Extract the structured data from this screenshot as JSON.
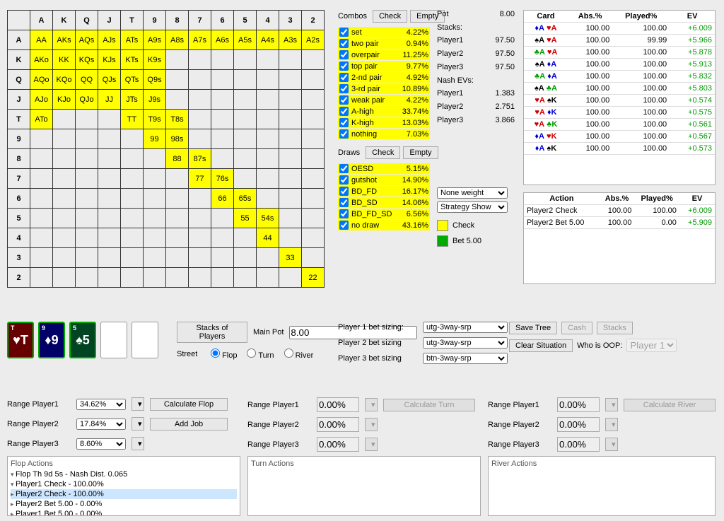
{
  "ranks": [
    "A",
    "K",
    "Q",
    "J",
    "T",
    "9",
    "8",
    "7",
    "6",
    "5",
    "4",
    "3",
    "2"
  ],
  "highlighted_cells": [
    "AA",
    "AKs",
    "AQs",
    "AJs",
    "ATs",
    "A9s",
    "A8s",
    "A7s",
    "A6s",
    "A5s",
    "A4s",
    "A3s",
    "A2s",
    "AKo",
    "KK",
    "KQs",
    "KJs",
    "KTs",
    "K9s",
    "AQo",
    "KQo",
    "QQ",
    "QJs",
    "QTs",
    "Q9s",
    "AJo",
    "KJo",
    "QJo",
    "JJ",
    "JTs",
    "J9s",
    "ATo",
    "TT",
    "T9s",
    "T8s",
    "99",
    "98s",
    "88",
    "87s",
    "77",
    "76s",
    "66",
    "65s",
    "55",
    "54s",
    "44",
    "33",
    "22"
  ],
  "combos_title": "Combos",
  "check_label": "Check",
  "empty_label": "Empty",
  "combos": [
    {
      "label": "set",
      "pct": "4.22%"
    },
    {
      "label": "two pair",
      "pct": "0.94%"
    },
    {
      "label": "overpair",
      "pct": "11.25%"
    },
    {
      "label": "top pair",
      "pct": "9.77%"
    },
    {
      "label": "2-nd pair",
      "pct": "4.92%"
    },
    {
      "label": "3-rd pair",
      "pct": "10.89%"
    },
    {
      "label": "weak pair",
      "pct": "4.22%"
    },
    {
      "label": "A-high",
      "pct": "33.74%"
    },
    {
      "label": "K-high",
      "pct": "13.03%"
    },
    {
      "label": "nothing",
      "pct": "7.03%"
    }
  ],
  "draws_title": "Draws",
  "draws": [
    {
      "label": "OESD",
      "pct": "5.15%"
    },
    {
      "label": "gutshot",
      "pct": "14.90%"
    },
    {
      "label": "BD_FD",
      "pct": "16.17%"
    },
    {
      "label": "BD_SD",
      "pct": "14.06%"
    },
    {
      "label": "BD_FD_SD",
      "pct": "6.56%"
    },
    {
      "label": "no draw",
      "pct": "43.16%"
    }
  ],
  "pot": {
    "pot_label": "Pot",
    "pot_val": "8.00",
    "stacks_label": "Stacks:",
    "p1_label": "Player1",
    "p1_val": "97.50",
    "p2_label": "Player2",
    "p2_val": "97.50",
    "p3_label": "Player3",
    "p3_val": "97.50",
    "nash_label": "Nash EVs:",
    "n1_label": "Player1",
    "n1_val": "1.383",
    "n2_label": "Player2",
    "n2_val": "2.751",
    "n3_label": "Player3",
    "n3_val": "3.866"
  },
  "card_table": {
    "headers": [
      "Card",
      "Abs.%",
      "Played%",
      "EV"
    ],
    "rows": [
      {
        "c": [
          [
            "d",
            "A"
          ],
          [
            "h",
            "A"
          ]
        ],
        "abs": "100.00",
        "pl": "100.00",
        "ev": "+6.009"
      },
      {
        "c": [
          [
            "s",
            "A"
          ],
          [
            "h",
            "A"
          ]
        ],
        "abs": "100.00",
        "pl": "99.99",
        "ev": "+5.966"
      },
      {
        "c": [
          [
            "c",
            "A"
          ],
          [
            "h",
            "A"
          ]
        ],
        "abs": "100.00",
        "pl": "100.00",
        "ev": "+5.878"
      },
      {
        "c": [
          [
            "s",
            "A"
          ],
          [
            "d",
            "A"
          ]
        ],
        "abs": "100.00",
        "pl": "100.00",
        "ev": "+5.913"
      },
      {
        "c": [
          [
            "c",
            "A"
          ],
          [
            "d",
            "A"
          ]
        ],
        "abs": "100.00",
        "pl": "100.00",
        "ev": "+5.832"
      },
      {
        "c": [
          [
            "s",
            "A"
          ],
          [
            "c",
            "A"
          ]
        ],
        "abs": "100.00",
        "pl": "100.00",
        "ev": "+5.803"
      },
      {
        "c": [
          [
            "h",
            "A"
          ],
          [
            "s",
            "K"
          ]
        ],
        "abs": "100.00",
        "pl": "100.00",
        "ev": "+0.574"
      },
      {
        "c": [
          [
            "h",
            "A"
          ],
          [
            "d",
            "K"
          ]
        ],
        "abs": "100.00",
        "pl": "100.00",
        "ev": "+0.575"
      },
      {
        "c": [
          [
            "h",
            "A"
          ],
          [
            "c",
            "K"
          ]
        ],
        "abs": "100.00",
        "pl": "100.00",
        "ev": "+0.561"
      },
      {
        "c": [
          [
            "d",
            "A"
          ],
          [
            "h",
            "K"
          ]
        ],
        "abs": "100.00",
        "pl": "100.00",
        "ev": "+0.567"
      },
      {
        "c": [
          [
            "d",
            "A"
          ],
          [
            "s",
            "K"
          ]
        ],
        "abs": "100.00",
        "pl": "100.00",
        "ev": "+0.573"
      }
    ]
  },
  "strategy": {
    "weight_options": [
      "None weight"
    ],
    "show_options": [
      "Strategy Show"
    ],
    "legend": [
      {
        "color": "#ffff00",
        "label": "Check"
      },
      {
        "color": "#00aa00",
        "label": "Bet 5.00"
      }
    ]
  },
  "action_table": {
    "headers": [
      "Action",
      "Abs.%",
      "Played%",
      "EV"
    ],
    "rows": [
      {
        "action": "Player2 Check",
        "abs": "100.00",
        "pl": "100.00",
        "ev": "+6.009"
      },
      {
        "action": "Player2 Bet 5.00",
        "abs": "100.00",
        "pl": "0.00",
        "ev": "+5.909"
      }
    ]
  },
  "board_cards": [
    {
      "rank": "T",
      "suit": "h",
      "bg": "red"
    },
    {
      "rank": "9",
      "suit": "d",
      "bg": "blue"
    },
    {
      "rank": "5",
      "suit": "s",
      "bg": "black"
    }
  ],
  "mid": {
    "stacks_btn": "Stacks of Players",
    "main_pot_label": "Main Pot",
    "main_pot_val": "8.00",
    "street_label": "Street",
    "flop": "Flop",
    "turn": "Turn",
    "river": "River"
  },
  "sizing": {
    "p1_label": "Player 1 bet sizing:",
    "p1_val": "utg-3way-srp",
    "p2_label": "Player 2 bet sizing",
    "p2_val": "utg-3way-srp",
    "p3_label": "Player 3 bet sizing",
    "p3_val": "btn-3way-srp"
  },
  "rbtns": {
    "save": "Save Tree",
    "clear": "Clear Situation",
    "cash": "Cash",
    "stacks": "Stacks",
    "oop_label": "Who is OOP:",
    "oop_val": "Player 1"
  },
  "ranges": {
    "col1": [
      {
        "label": "Range Player1",
        "val": "34.62%"
      },
      {
        "label": "Range Player2",
        "val": "17.84%"
      },
      {
        "label": "Range Player3",
        "val": "8.60%"
      }
    ],
    "calc_flop": "Calculate Flop",
    "add_job": "Add Job",
    "zero": "0.00%",
    "calc_turn": "Calculate Turn",
    "calc_river": "Calculate River",
    "rp1": "Range Player1",
    "rp2": "Range Player2",
    "rp3": "Range Player3"
  },
  "trees": {
    "flop_title": "Flop Actions",
    "turn_title": "Turn Actions",
    "river_title": "River Actions",
    "flop_nodes": [
      {
        "text": "Flop Th 9d 5s - Nash Dist. 0.065",
        "indent": 0,
        "caret": "d"
      },
      {
        "text": "Player1 Check - 100.00%",
        "indent": 1,
        "caret": "d"
      },
      {
        "text": "Player2 Check - 100.00%",
        "indent": 2,
        "caret": "r",
        "sel": true
      },
      {
        "text": "Player2 Bet 5.00 - 0.00%",
        "indent": 2,
        "caret": "r"
      },
      {
        "text": "Player1 Bet 5.00 - 0.00%",
        "indent": 1,
        "caret": "r"
      }
    ]
  }
}
